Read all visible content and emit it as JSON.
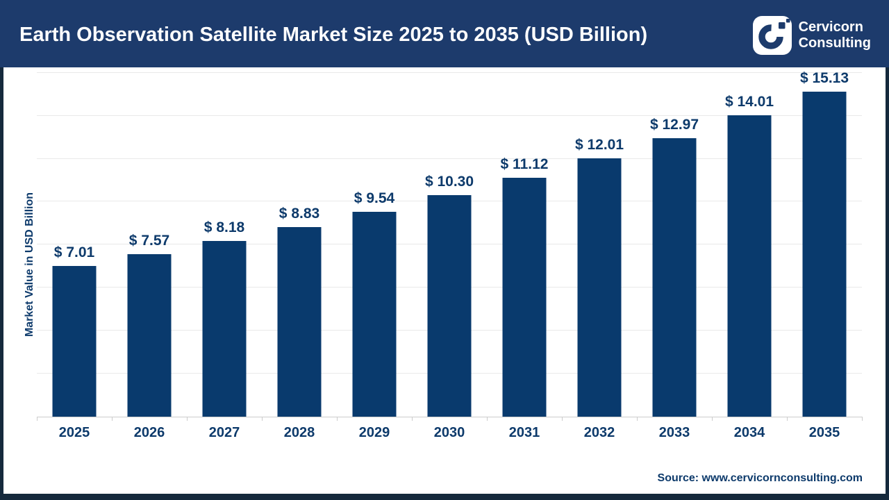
{
  "header": {
    "title": "Earth Observation Satellite Market Size 2025 to 2035 (USD Billion)",
    "logo": {
      "line1": "Cervicorn",
      "line2": "Consulting"
    }
  },
  "chart_data": {
    "type": "bar",
    "title": "Earth Observation Satellite Market Size 2025 to 2035 (USD Billion)",
    "categories": [
      "2025",
      "2026",
      "2027",
      "2028",
      "2029",
      "2030",
      "2031",
      "2032",
      "2033",
      "2034",
      "2035"
    ],
    "values": [
      7.01,
      7.57,
      8.18,
      8.83,
      9.54,
      10.3,
      11.12,
      12.01,
      12.97,
      14.01,
      15.13
    ],
    "value_labels": [
      "$ 7.01",
      "$ 7.57",
      "$ 8.18",
      "$ 8.83",
      "$ 9.54",
      "$ 10.30",
      "$ 11.12",
      "$ 12.01",
      "$ 12.97",
      "$ 14.01",
      "$ 15.13"
    ],
    "xlabel": "",
    "ylabel": "Market Value in USD Billion",
    "ylim": [
      0,
      16.25
    ],
    "grid_step": 2,
    "grid": true,
    "legend_position": "none"
  },
  "footer": {
    "source": "Source: www.cervicornconsulting.com"
  },
  "colors": {
    "header_bg": "#1d3b6c",
    "bar": "#093a6d",
    "text_navy": "#0d3a6b",
    "frame": "#15293c",
    "grid": "#e9e9e9",
    "axis": "#cccccc"
  }
}
